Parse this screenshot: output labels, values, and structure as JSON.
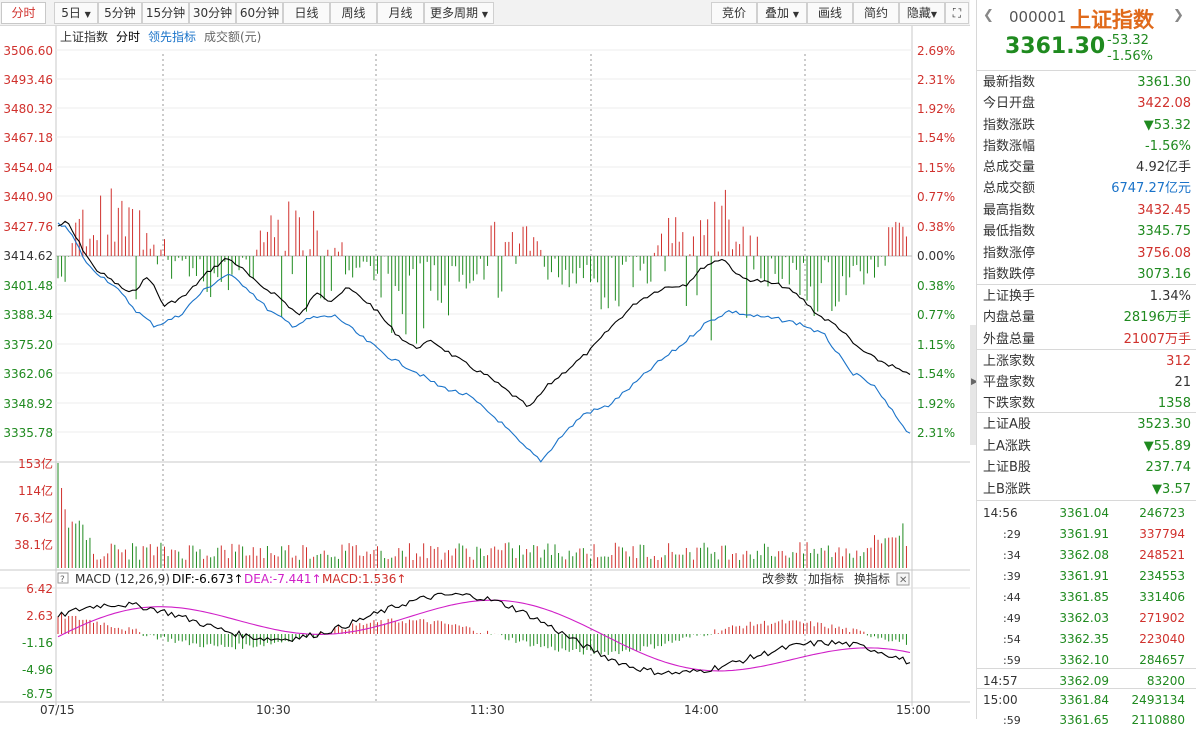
{
  "toolbar": {
    "period_tabs": [
      "分时",
      "5日",
      "5分钟",
      "15分钟",
      "30分钟",
      "60分钟",
      "日线",
      "周线",
      "月线",
      "更多周期"
    ],
    "right_tabs": [
      "竞价",
      "叠加",
      "画线",
      "简约",
      "隐藏"
    ]
  },
  "chart_header": {
    "name": "上证指数",
    "mode": "分时",
    "leading": "领先指标",
    "volume": "成交额(元)"
  },
  "price_axis": {
    "left": [
      "3506.60",
      "3493.46",
      "3480.32",
      "3467.18",
      "3454.04",
      "3440.90",
      "3427.76",
      "3414.62",
      "3401.48",
      "3388.34",
      "3375.20",
      "3362.06",
      "3348.92",
      "3335.78"
    ],
    "right": [
      "2.69%",
      "2.31%",
      "1.92%",
      "1.54%",
      "1.15%",
      "0.77%",
      "0.38%",
      "0.00%",
      "0.38%",
      "0.77%",
      "1.15%",
      "1.54%",
      "1.92%",
      "2.31%"
    ]
  },
  "volume_axis": [
    "153亿",
    "114亿",
    "76.3亿",
    "38.1亿"
  ],
  "macd": {
    "title": "MACD (12,26,9)",
    "dif": "DIF:-6.673↑",
    "dea": "DEA:-7.441↑",
    "macd": "MACD:1.536↑",
    "actions": [
      "改参数",
      "加指标",
      "换指标"
    ],
    "axis": [
      "6.42",
      "2.63",
      "-1.16",
      "-4.96",
      "-8.75"
    ]
  },
  "time_axis": [
    "07/15",
    "10:30",
    "11:30",
    "14:00",
    "15:00"
  ],
  "quote": {
    "code": "000001",
    "name": "上证指数",
    "price": "3361.30",
    "change": "-53.32",
    "pct": "-1.56%"
  },
  "stats": [
    {
      "label": "最新指数",
      "value": "3361.30",
      "color": "#1f8a1f"
    },
    {
      "label": "今日开盘",
      "value": "3422.08",
      "color": "#d0312d"
    },
    {
      "label": "指数涨跌",
      "value": "▼53.32",
      "color": "#1f8a1f"
    },
    {
      "label": "指数涨幅",
      "value": "-1.56%",
      "color": "#1f8a1f"
    },
    {
      "label": "总成交量",
      "value": "4.92亿手",
      "color": "#333333"
    },
    {
      "label": "总成交额",
      "value": "6747.27亿元",
      "color": "#1a73c9"
    },
    {
      "label": "最高指数",
      "value": "3432.45",
      "color": "#d0312d"
    },
    {
      "label": "最低指数",
      "value": "3345.75",
      "color": "#1f8a1f"
    },
    {
      "label": "指数涨停",
      "value": "3756.08",
      "color": "#d0312d"
    },
    {
      "label": "指数跌停",
      "value": "3073.16",
      "color": "#1f8a1f"
    },
    {
      "label": "上证换手",
      "value": "1.34%",
      "color": "#333333"
    },
    {
      "label": "内盘总量",
      "value": "28196万手",
      "color": "#1f8a1f"
    },
    {
      "label": "外盘总量",
      "value": "21007万手",
      "color": "#d0312d"
    },
    {
      "label": "上涨家数",
      "value": "312",
      "color": "#d0312d"
    },
    {
      "label": "平盘家数",
      "value": "21",
      "color": "#333333"
    },
    {
      "label": "下跌家数",
      "value": "1358",
      "color": "#1f8a1f"
    },
    {
      "label": "上证A股",
      "value": "3523.30",
      "color": "#1f8a1f"
    },
    {
      "label": "上A涨跌",
      "value": "▼55.89",
      "color": "#1f8a1f"
    },
    {
      "label": "上证B股",
      "value": "237.74",
      "color": "#1f8a1f"
    },
    {
      "label": "上B涨跌",
      "value": "▼3.57",
      "color": "#1f8a1f"
    }
  ],
  "ticks": [
    {
      "time": "14:56",
      "price": "3361.04",
      "vol": "246723",
      "vol_color": "#1f8a1f"
    },
    {
      "time": ":29",
      "price": "3361.91",
      "vol": "337794",
      "vol_color": "#d0312d"
    },
    {
      "time": ":34",
      "price": "3362.08",
      "vol": "248521",
      "vol_color": "#d0312d"
    },
    {
      "time": ":39",
      "price": "3361.91",
      "vol": "234553",
      "vol_color": "#1f8a1f"
    },
    {
      "time": ":44",
      "price": "3361.85",
      "vol": "331406",
      "vol_color": "#1f8a1f"
    },
    {
      "time": ":49",
      "price": "3362.03",
      "vol": "271902",
      "vol_color": "#d0312d"
    },
    {
      "time": ":54",
      "price": "3362.35",
      "vol": "223040",
      "vol_color": "#d0312d"
    },
    {
      "time": ":59",
      "price": "3362.10",
      "vol": "284657",
      "vol_color": "#1f8a1f"
    },
    {
      "time": "14:57",
      "price": "3362.09",
      "vol": "83200",
      "vol_color": "#1f8a1f"
    },
    {
      "time": "15:00",
      "price": "3361.84",
      "vol": "2493134",
      "vol_color": "#1f8a1f"
    },
    {
      "time": ":59",
      "price": "3361.65",
      "vol": "2110880",
      "vol_color": "#1f8a1f"
    }
  ],
  "colors": {
    "up": "#d0312d",
    "down": "#1f8a1f",
    "price_line": "#000000",
    "avg_line": "#1a73c9",
    "dea_line": "#d020c8"
  }
}
